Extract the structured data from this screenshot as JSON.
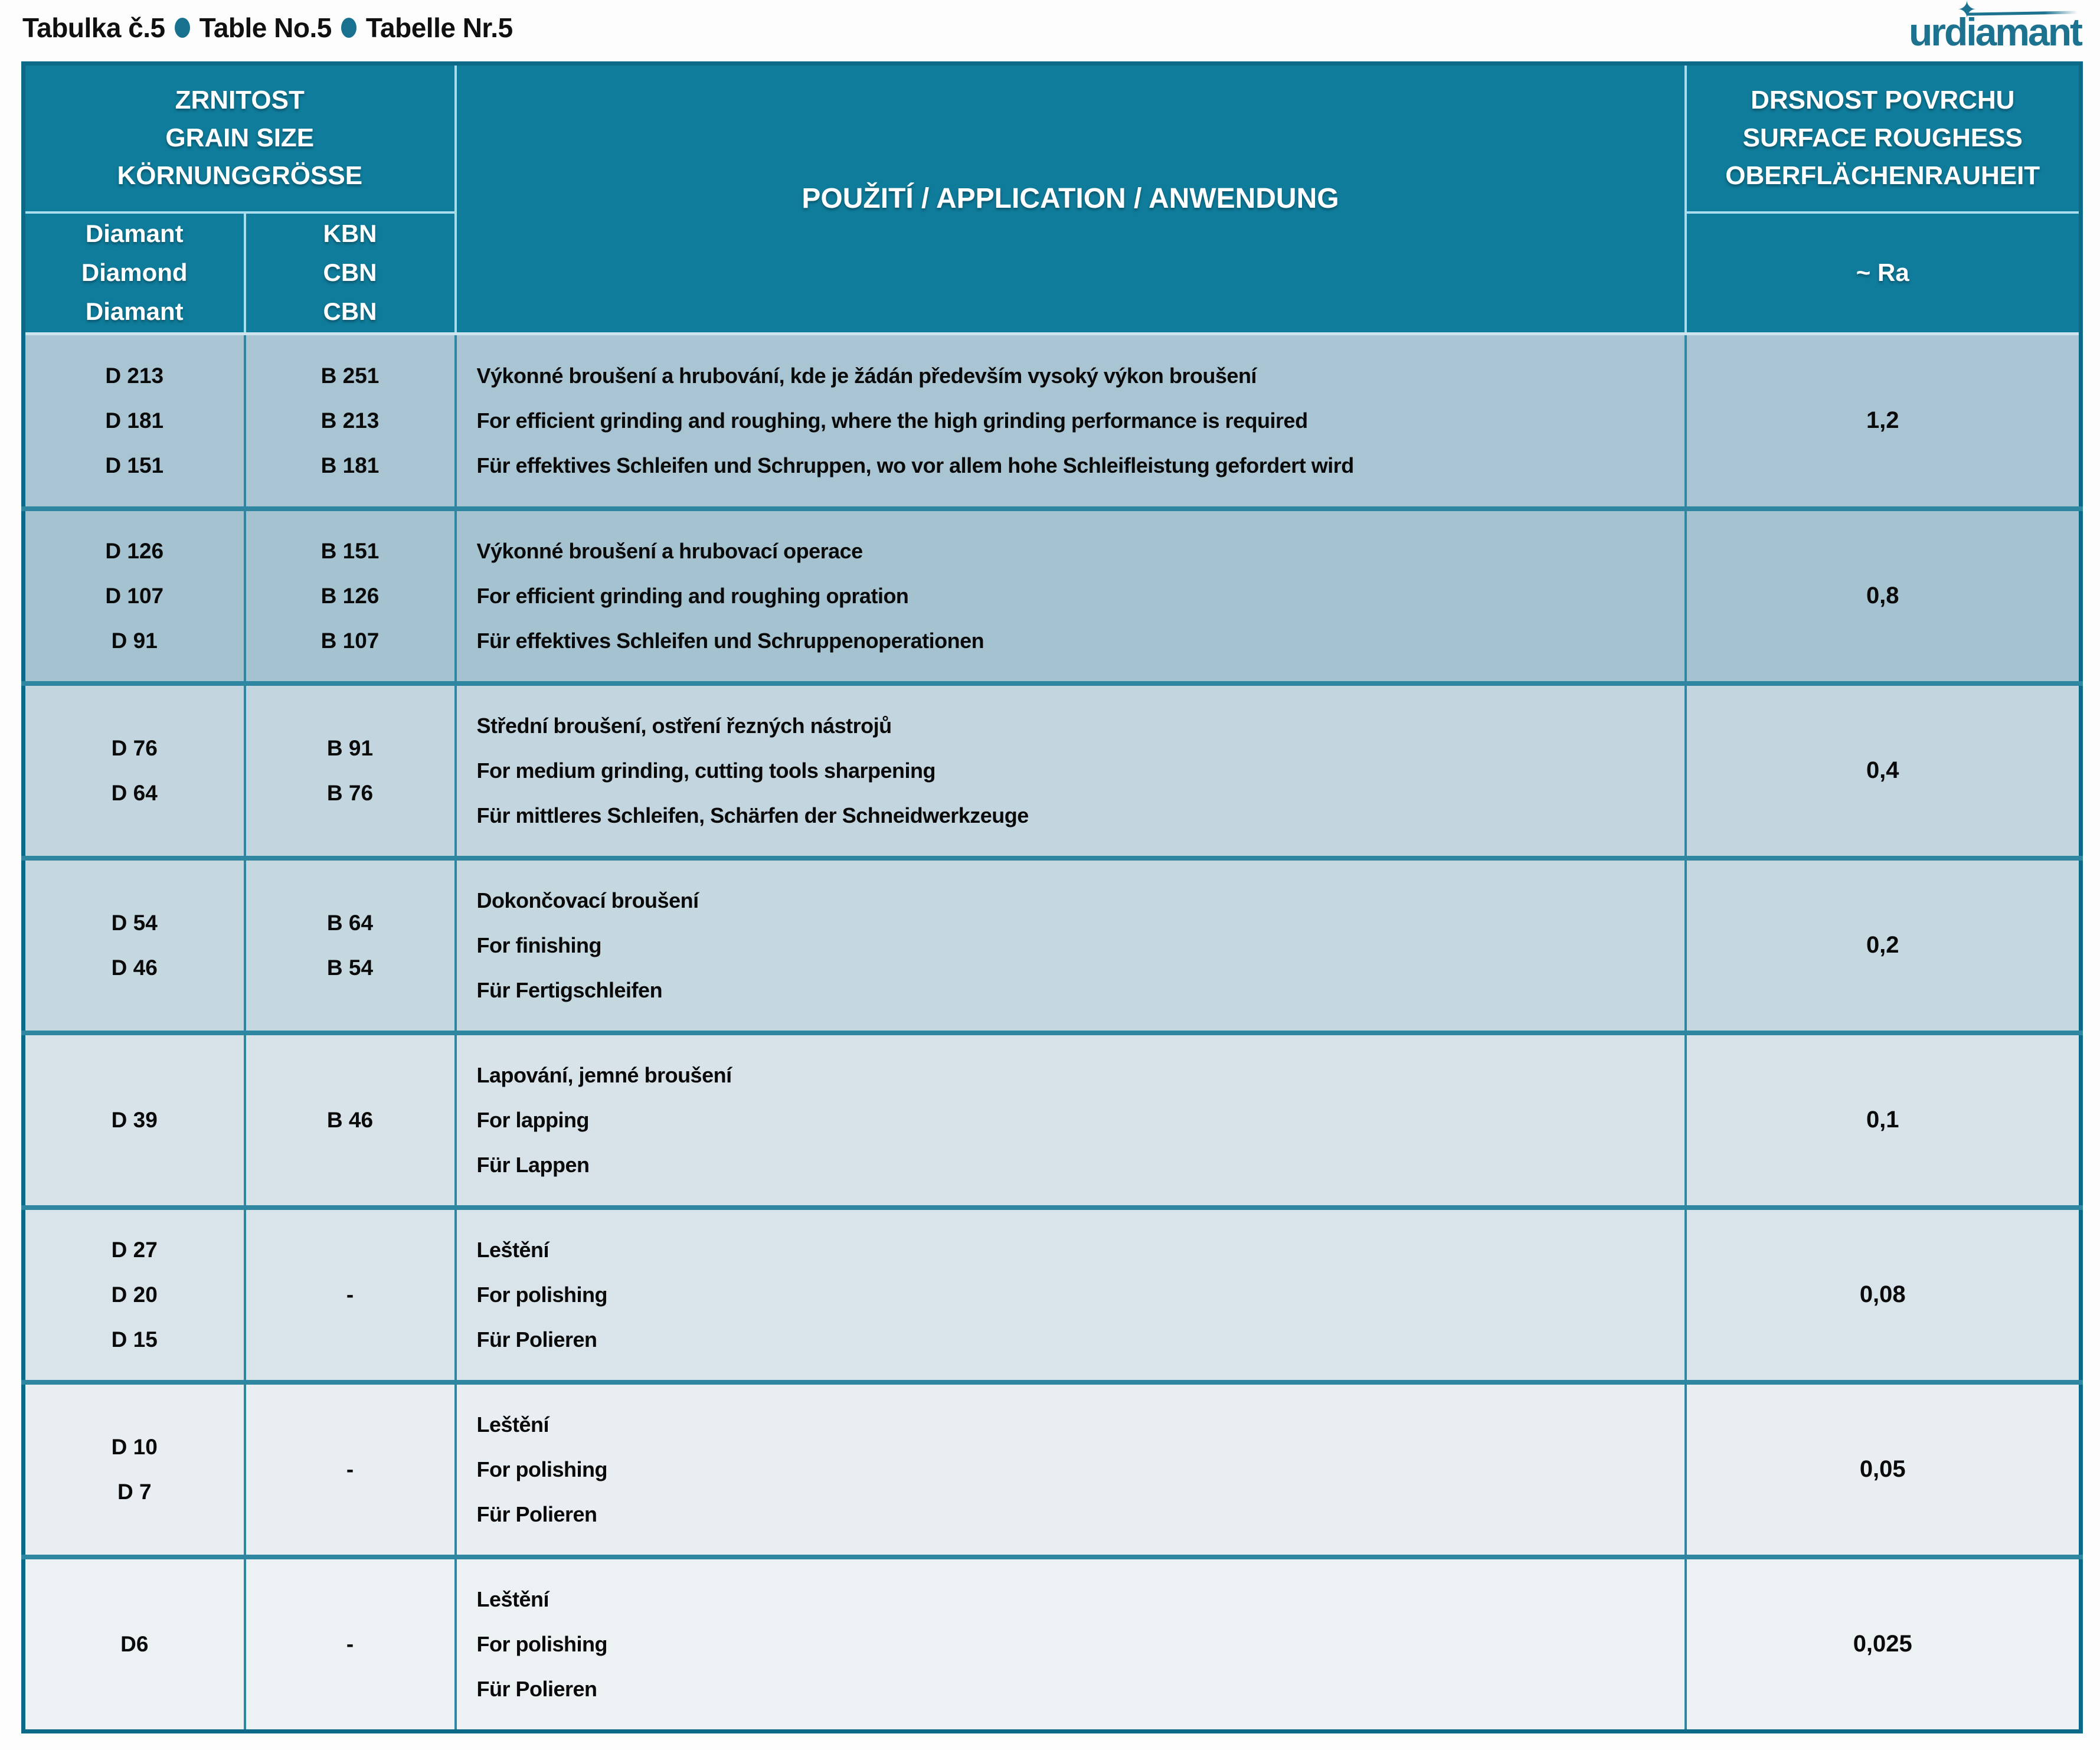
{
  "title": {
    "segments": [
      "Tabulka č.5",
      "Table No.5",
      "Tabelle Nr.5"
    ]
  },
  "logo": {
    "text": "urdiamant"
  },
  "colors": {
    "header_teal": "#0f7c9b",
    "header_divider_light": "#a9dcec",
    "outer_border": "#0c6a88",
    "body_grid_teal": "#2f86a0",
    "logo_teal": "#1d7290",
    "title_bullet": "#17718f",
    "row_shades": [
      "#a9c4d2",
      "#a5c2d1",
      "#c3d6df",
      "#c5d8e0",
      "#d7e3e9",
      "#d9e4ea",
      "#e9eef2",
      "#ecf1f4"
    ],
    "text_dark": "#0a0a0a"
  },
  "table": {
    "header": {
      "grain_size_lines": [
        "ZRNITOST",
        "GRAIN SIZE",
        "KÖRNUNGGRÖSSE"
      ],
      "application": "POUŽITÍ / APPLICATION / ANWENDUNG",
      "roughness_lines": [
        "DRSNOST POVRCHU",
        "SURFACE ROUGHESS",
        "OBERFLÄCHENRAUHEIT"
      ],
      "diamond_sub_lines": [
        "Diamant",
        "Diamond",
        "Diamant"
      ],
      "cbn_sub_lines": [
        "KBN",
        "CBN",
        "CBN"
      ],
      "ra_sub": "~ Ra"
    },
    "rows": [
      {
        "diamond": [
          "D 213",
          "D 181",
          "D 151"
        ],
        "cbn": [
          "B 251",
          "B 213",
          "B 181"
        ],
        "application": [
          "Výkonné broušení a hrubování, kde je žádán především vysoký výkon broušení",
          "For efficient grinding and roughing, where the high grinding performance is required",
          "Für effektives Schleifen und Schruppen, wo vor allem hohe Schleifleistung gefordert wird"
        ],
        "ra": "1,2"
      },
      {
        "diamond": [
          "D 126",
          "D 107",
          "D 91"
        ],
        "cbn": [
          "B 151",
          "B 126",
          "B 107"
        ],
        "application": [
          "Výkonné broušení a hrubovací operace",
          "For efficient grinding and roughing opration",
          "Für effektives Schleifen und Schruppenoperationen"
        ],
        "ra": "0,8"
      },
      {
        "diamond": [
          "D 76",
          "D 64"
        ],
        "cbn": [
          "B 91",
          "B 76"
        ],
        "application": [
          "Střední broušení, ostření řezných nástrojů",
          "For medium grinding, cutting tools sharpening",
          "Für mittleres Schleifen, Schärfen der Schneidwerkzeuge"
        ],
        "ra": "0,4"
      },
      {
        "diamond": [
          "D 54",
          "D 46"
        ],
        "cbn": [
          "B 64",
          "B 54"
        ],
        "application": [
          "Dokončovací broušení",
          "For finishing",
          "Für Fertigschleifen"
        ],
        "ra": "0,2"
      },
      {
        "diamond": [
          "D 39"
        ],
        "cbn": [
          "B 46"
        ],
        "application": [
          "Lapování, jemné broušení",
          "For lapping",
          "Für Lappen"
        ],
        "ra": "0,1"
      },
      {
        "diamond": [
          "D 27",
          "D 20",
          "D 15"
        ],
        "cbn": [
          "-"
        ],
        "application": [
          "Leštění",
          "For polishing",
          "Für Polieren"
        ],
        "ra": "0,08"
      },
      {
        "diamond": [
          "D 10",
          "D 7"
        ],
        "cbn": [
          "-"
        ],
        "application": [
          "Leštění",
          "For polishing",
          "Für Polieren"
        ],
        "ra": "0,05"
      },
      {
        "diamond": [
          "D6"
        ],
        "cbn": [
          "-"
        ],
        "application": [
          "Leštění",
          "For polishing",
          "Für Polieren"
        ],
        "ra": "0,025"
      }
    ]
  }
}
